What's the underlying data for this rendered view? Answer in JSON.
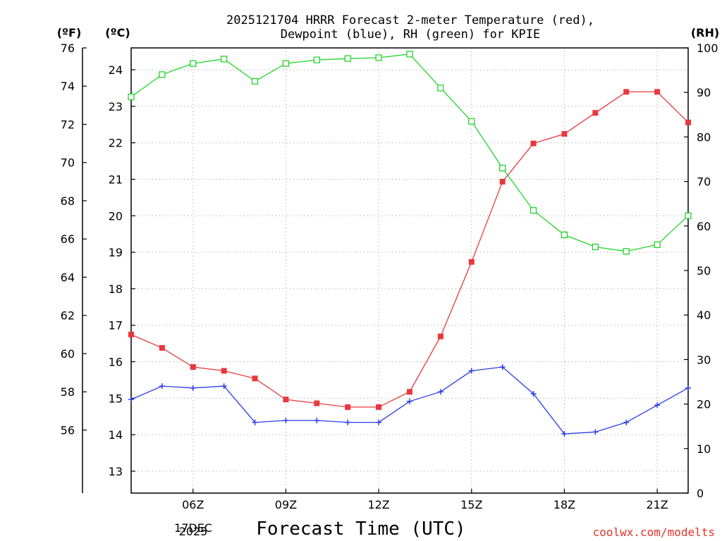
{
  "chart_data": {
    "type": "line",
    "title_line1": "2025121704 HRRR Forecast 2-meter Temperature (red),",
    "title_line2": "Dewpoint (blue), RH (green) for KPIE",
    "xlabel": "Forecast Time (UTC)",
    "date_label_day": "17DEC",
    "date_label_year": "2025",
    "credit": "coolwx.com/modelts",
    "left_axis_f": {
      "unit": "(ºF)",
      "range": [
        52.7,
        76
      ],
      "ticks": [
        "56",
        "58",
        "60",
        "62",
        "64",
        "66",
        "68",
        "70",
        "72",
        "74",
        "76"
      ]
    },
    "left_axis_c": {
      "unit": "(ºC)",
      "range": [
        12.4,
        24.6
      ],
      "ticks": [
        "13",
        "14",
        "15",
        "16",
        "17",
        "18",
        "19",
        "20",
        "21",
        "22",
        "23",
        "24"
      ]
    },
    "right_axis_rh": {
      "unit": "(RH)",
      "range": [
        0,
        100
      ],
      "ticks": [
        "0",
        "10",
        "20",
        "30",
        "40",
        "50",
        "60",
        "70",
        "80",
        "90",
        "100"
      ]
    },
    "x_range": [
      4,
      22
    ],
    "x_ticks": [
      {
        "x": 6,
        "label": "06Z"
      },
      {
        "x": 9,
        "label": "09Z"
      },
      {
        "x": 12,
        "label": "12Z"
      },
      {
        "x": 15,
        "label": "15Z"
      },
      {
        "x": 18,
        "label": "18Z"
      },
      {
        "x": 21,
        "label": "21Z"
      }
    ],
    "x": [
      4,
      5,
      6,
      7,
      8,
      9,
      10,
      11,
      12,
      13,
      14,
      15,
      16,
      17,
      18,
      19,
      20,
      21,
      22
    ],
    "series": [
      {
        "name": "Temperature",
        "axis": "F",
        "color": "#e8383d",
        "marker": "filled-square",
        "values": [
          61.0,
          60.3,
          59.3,
          59.1,
          58.7,
          57.6,
          57.4,
          57.2,
          57.2,
          58.0,
          60.9,
          64.8,
          69.0,
          71.0,
          71.5,
          72.6,
          73.7,
          73.7,
          72.1
        ]
      },
      {
        "name": "Dewpoint",
        "axis": "F",
        "color": "#2a3ee6",
        "marker": "plus",
        "values": [
          57.6,
          58.3,
          58.2,
          58.3,
          56.4,
          56.5,
          56.5,
          56.4,
          56.4,
          57.5,
          58.0,
          59.1,
          59.3,
          57.9,
          55.8,
          55.9,
          56.4,
          57.3,
          58.2
        ]
      },
      {
        "name": "RH",
        "axis": "RH",
        "color": "#22d42a",
        "marker": "open-square",
        "values": [
          89,
          94,
          96.5,
          97.5,
          92.5,
          96.5,
          97.3,
          97.6,
          97.8,
          98.6,
          91,
          83.5,
          73,
          63.5,
          58,
          55.3,
          54.3,
          55.8,
          62.3
        ]
      }
    ]
  }
}
